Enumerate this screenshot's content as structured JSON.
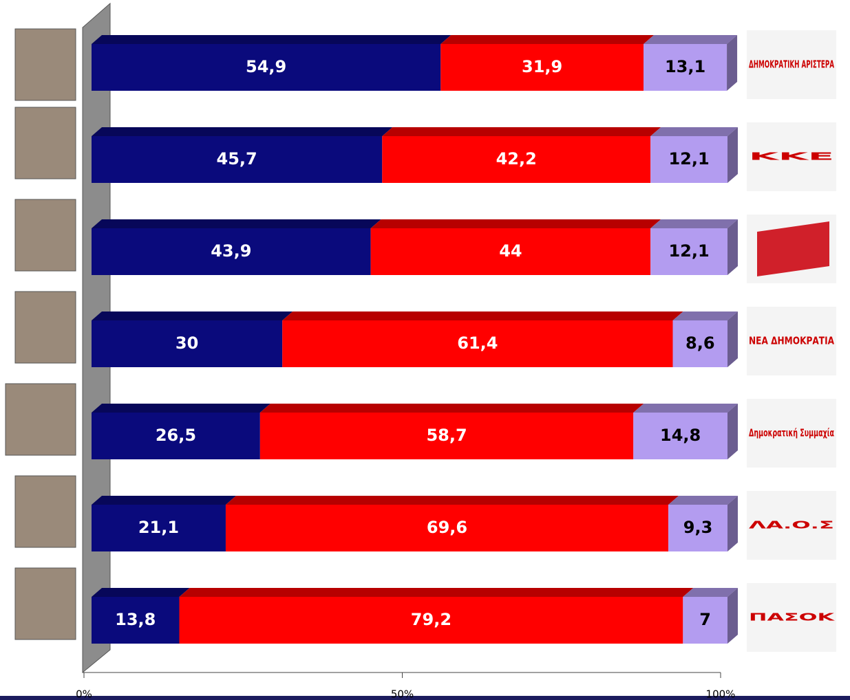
{
  "chart_data": {
    "type": "stacked-bar-3d",
    "categories": [
      "ΔΗΜΟΚΡΑΤΙΚΗ ΑΡΙΣΤΕΡΑ",
      "ΚΚΕ",
      null,
      "ΝΕΑ ΔΗΜΟΚΡΑΤΙΑ",
      "Δημοκρατική Συμμαχία",
      "ΛΑ.Ο.Σ",
      "ΠΑΣΟΚ"
    ],
    "series": [
      {
        "color": "#0a0a7c",
        "values": [
          54.9,
          45.7,
          43.9,
          30,
          26.5,
          21.1,
          13.8
        ],
        "value_labels": [
          "54,9",
          "45,7",
          "43,9",
          "30",
          "26,5",
          "21,1",
          "13,8"
        ]
      },
      {
        "color": "#ff0000",
        "values": [
          31.9,
          42.2,
          44,
          61.4,
          58.7,
          69.6,
          79.2
        ],
        "value_labels": [
          "31,9",
          "42,2",
          "44",
          "61,4",
          "58,7",
          "69,6",
          "79,2"
        ]
      },
      {
        "color": "#b39cf0",
        "values": [
          13.1,
          12.1,
          12.1,
          8.6,
          14.8,
          9.3,
          7
        ],
        "value_labels": [
          "13,1",
          "12,1",
          "12,1",
          "8,6",
          "14,8",
          "9,3",
          "7"
        ]
      }
    ],
    "xlim": [
      0,
      100
    ],
    "xticks": [
      {
        "value": 0,
        "label": "0%"
      },
      {
        "value": 50,
        "label": "50%"
      },
      {
        "value": 100,
        "label": "100%"
      }
    ]
  }
}
